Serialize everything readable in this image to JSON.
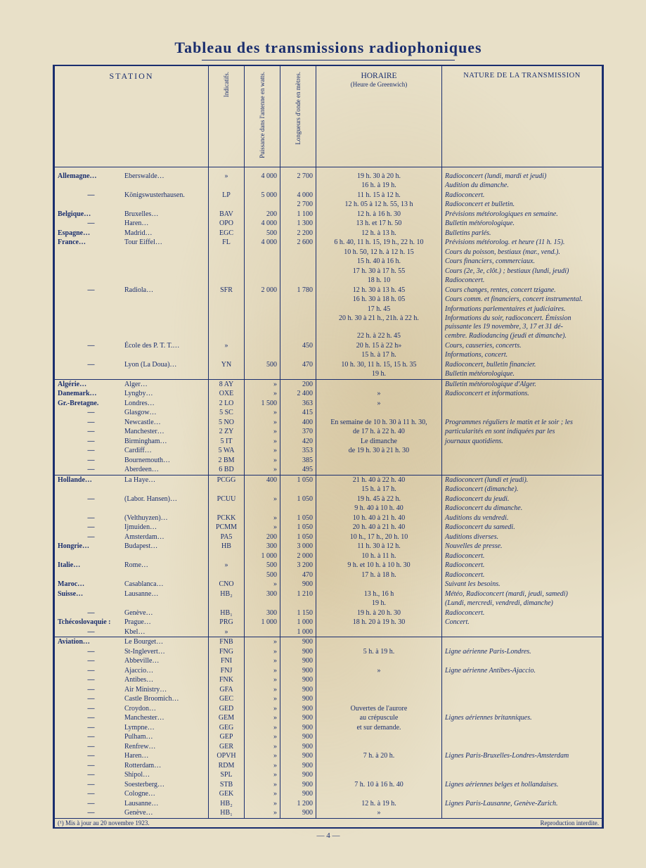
{
  "title": "Tableau des transmissions radiophoniques",
  "headers": {
    "station": "STATION",
    "indicatifs": "Indicatifs.",
    "puissance": "Puissance dans l'antenne en watts.",
    "longueurs": "Longueurs d'onde en mètres.",
    "horaire": "HORAIRE",
    "horaire_sub": "(Heure de Greenwich)",
    "nature": "NATURE DE LA TRANSMISSION"
  },
  "rows": [
    {
      "country": "Allemagne…",
      "city": "Eberswalde…",
      "ind": "»",
      "watts": "4 000",
      "len": "2 700",
      "hor": "19 h. 30 à 20 h.",
      "nat": "Radioconcert (lundi, mardi et jeudi)"
    },
    {
      "country": "",
      "city": "",
      "ind": "",
      "watts": "",
      "len": "",
      "hor": "16 h. à 19 h.",
      "nat": "Audition du dimanche."
    },
    {
      "country": "—",
      "city": "Königswusterhausen.",
      "ind": "LP",
      "watts": "5 000",
      "len": "4 000",
      "hor": "11 h. 15 à 12 h.",
      "nat": "Radioconcert."
    },
    {
      "country": "",
      "city": "",
      "ind": "",
      "watts": "",
      "len": "2 700",
      "hor": "12 h. 05 à 12 h. 55, 13 h",
      "nat": "Radioconcert et bulletin."
    },
    {
      "country": "Belgique…",
      "city": "Bruxelles…",
      "ind": "BAV",
      "watts": "200",
      "len": "1 100",
      "hor": "12 h. à 16 h. 30",
      "nat": "Prévisions météorologiques en semaine."
    },
    {
      "country": "—",
      "city": "Haren…",
      "ind": "OPO",
      "watts": "4 000",
      "len": "1 300",
      "hor": "13 h. et 17 h. 50",
      "nat": "Bulletin météorologique."
    },
    {
      "country": "Espagne…",
      "city": "Madrid…",
      "ind": "EGC",
      "watts": "500",
      "len": "2 200",
      "hor": "12 h. à 13 h.",
      "nat": "Bulletins parlés."
    },
    {
      "country": "France…",
      "city": "Tour Eiffel…",
      "ind": "FL",
      "watts": "4 000",
      "len": "2 600",
      "hor": "6 h. 40, 11 h. 15, 19 h., 22 h. 10",
      "nat": "Prévisions météorolog. et heure (11 h. 15)."
    },
    {
      "country": "",
      "city": "",
      "ind": "",
      "watts": "",
      "len": "",
      "hor": "10 h. 50, 12 h. à 12 h. 15",
      "nat": "Cours du poisson, bestiaux (mar., vend.)."
    },
    {
      "country": "",
      "city": "",
      "ind": "",
      "watts": "",
      "len": "",
      "hor": "15 h. 40 à 16 h.",
      "nat": "Cours financiers, commerciaux."
    },
    {
      "country": "",
      "city": "",
      "ind": "",
      "watts": "",
      "len": "",
      "hor": "17 h. 30 à 17 h. 55",
      "nat": "Cours (2e, 3e, clôt.) ; bestiaux (lundi, jeudi)"
    },
    {
      "country": "",
      "city": "",
      "ind": "",
      "watts": "",
      "len": "",
      "hor": "18 h. 10",
      "nat": "Radioconcert."
    },
    {
      "country": "—",
      "city": "Radiola…",
      "ind": "SFR",
      "watts": "2 000",
      "len": "1 780",
      "hor": "12 h. 30 à 13 h. 45",
      "nat": "Cours changes, rentes, concert tzigane."
    },
    {
      "country": "",
      "city": "",
      "ind": "",
      "watts": "",
      "len": "",
      "hor": "16 h. 30 à 18 h. 05",
      "nat": "Cours comm. et financiers, concert instrumental."
    },
    {
      "country": "",
      "city": "",
      "ind": "",
      "watts": "",
      "len": "",
      "hor": "17 h. 45",
      "nat": "Informations parlementaires et judiciaires."
    },
    {
      "country": "",
      "city": "",
      "ind": "",
      "watts": "",
      "len": "",
      "hor": "20 h. 30 à 21 h., 21h. à 22 h.",
      "nat": "Informations du soir, radioconcert. Émission puissante les 19 novembre, 3, 17 et 31 dé-"
    },
    {
      "country": "",
      "city": "",
      "ind": "",
      "watts": "",
      "len": "",
      "hor": "22 h. à 22 h. 45",
      "nat": "cembre. Radiodancing (jeudi et dimanche)."
    },
    {
      "country": "—",
      "city": "École des P. T. T.…",
      "ind": "»",
      "watts": "",
      "len": "450",
      "hor": "20 h. 15 à 22 h»",
      "nat": "Cours, causeries, concerts."
    },
    {
      "country": "",
      "city": "",
      "ind": "",
      "watts": "",
      "len": "",
      "hor": "15 h. à 17 h.",
      "nat": "Informations, concert."
    },
    {
      "country": "—",
      "city": "Lyon (La Doua)…",
      "ind": "YN",
      "watts": "500",
      "len": "470",
      "hor": "10 h. 30, 11 h. 15, 15 h. 35",
      "nat": "Radioconcert, bulletin financier."
    },
    {
      "country": "",
      "city": "",
      "ind": "",
      "watts": "",
      "len": "",
      "hor": "19 h.",
      "nat": "Bulletin météorologique."
    },
    {
      "country": "Algérie…",
      "city": "Alger…",
      "ind": "8 AY",
      "watts": "»",
      "len": "200",
      "hor": "",
      "nat": "Bulletin météorologique d'Alger.",
      "sep": true
    },
    {
      "country": "Danemark…",
      "city": "Lyngby…",
      "ind": "OXE",
      "watts": "»",
      "len": "2 400",
      "hor": "»",
      "nat": "Radioconcert et informations."
    },
    {
      "country": "Gr.-Bretagne.",
      "city": "Londres…",
      "ind": "2 LO",
      "watts": "1 500",
      "len": "363",
      "hor": "»",
      "nat": ""
    },
    {
      "country": "—",
      "city": "Glasgow…",
      "ind": "5 SC",
      "watts": "»",
      "len": "415",
      "hor": "",
      "nat": ""
    },
    {
      "country": "—",
      "city": "Newcastle…",
      "ind": "5 NO",
      "watts": "»",
      "len": "400",
      "hor": "En semaine de 10 h. 30 à 11 h. 30,",
      "nat": "Programmes réguliers le matin et le soir ; les"
    },
    {
      "country": "—",
      "city": "Manchester…",
      "ind": "2 ZY",
      "watts": "»",
      "len": "370",
      "hor": "de 17 h. à 22 h. 40",
      "nat": "particularités en sont indiquées par les"
    },
    {
      "country": "—",
      "city": "Birmingham…",
      "ind": "5 IT",
      "watts": "»",
      "len": "420",
      "hor": "Le dimanche",
      "nat": "journaux quotidiens."
    },
    {
      "country": "—",
      "city": "Cardiff…",
      "ind": "5 WA",
      "watts": "»",
      "len": "353",
      "hor": "de 19 h. 30 à 21 h. 30",
      "nat": ""
    },
    {
      "country": "—",
      "city": "Bournemouth…",
      "ind": "2 BM",
      "watts": "»",
      "len": "385",
      "hor": "",
      "nat": ""
    },
    {
      "country": "—",
      "city": "Aberdeen…",
      "ind": "6 BD",
      "watts": "»",
      "len": "495",
      "hor": "",
      "nat": ""
    },
    {
      "country": "Hollande…",
      "city": "La Haye…",
      "ind": "PCGG",
      "watts": "400",
      "len": "1 050",
      "hor": "21 h. 40 à 22 h. 40",
      "nat": "Radioconcert (lundi et jeudi).",
      "sep": true
    },
    {
      "country": "",
      "city": "",
      "ind": "",
      "watts": "",
      "len": "",
      "hor": "15 h. à 17 h.",
      "nat": "Radioconcert (dimanche)."
    },
    {
      "country": "—",
      "city": "(Labor. Hansen)…",
      "ind": "PCUU",
      "watts": "»",
      "len": "1 050",
      "hor": "19 h. 45 à 22 h.",
      "nat": "Radioconcert du jeudi."
    },
    {
      "country": "",
      "city": "",
      "ind": "",
      "watts": "",
      "len": "",
      "hor": "9 h. 40 à 10 h. 40",
      "nat": "Radioconcert du dimanche."
    },
    {
      "country": "—",
      "city": "(Velthuyzen)…",
      "ind": "PCKK",
      "watts": "»",
      "len": "1 050",
      "hor": "10 h. 40 à 21 h. 40",
      "nat": "Auditions du vendredi."
    },
    {
      "country": "—",
      "city": "Ijmuiden…",
      "ind": "PCMM",
      "watts": "»",
      "len": "1 050",
      "hor": "20 h. 40 à 21 h. 40",
      "nat": "Radioconcert du samedi."
    },
    {
      "country": "—",
      "city": "Amsterdam…",
      "ind": "PA5",
      "watts": "200",
      "len": "1 050",
      "hor": "10 h., 17 h., 20 h. 10",
      "nat": "Auditions diverses."
    },
    {
      "country": "Hongrie…",
      "city": "Budapest…",
      "ind": "HB",
      "watts": "300",
      "len": "3 000",
      "hor": "11 h. 30 à 12 h.",
      "nat": "Nouvelles de presse."
    },
    {
      "country": "",
      "city": "",
      "ind": "",
      "watts": "1 000",
      "len": "2 000",
      "hor": "10 h. à 11 h.",
      "nat": "Radioconcert."
    },
    {
      "country": "Italie…",
      "city": "Rome…",
      "ind": "»",
      "watts": "500",
      "len": "3 200",
      "hor": "9 h. et 10 h. à 10 h. 30",
      "nat": "Radioconcert."
    },
    {
      "country": "",
      "city": "",
      "ind": "",
      "watts": "500",
      "len": "470",
      "hor": "17 h. à 18 h.",
      "nat": "Radioconcert."
    },
    {
      "country": "Maroc…",
      "city": "Casablanca…",
      "ind": "CNO",
      "watts": "»",
      "len": "900",
      "hor": "",
      "nat": "Suivant les besoins."
    },
    {
      "country": "Suisse…",
      "city": "Lausanne…",
      "ind": "HB₂",
      "watts": "300",
      "len": "1 210",
      "hor": "13 h., 16 h",
      "nat": "Météo, Radioconcert (mardi, jeudi, samedi)"
    },
    {
      "country": "",
      "city": "",
      "ind": "",
      "watts": "",
      "len": "",
      "hor": "19 h.",
      "nat": "(Lundi, mercredi, vendredi, dimanche)"
    },
    {
      "country": "—",
      "city": "Genève…",
      "ind": "HB₁",
      "watts": "300",
      "len": "1 150",
      "hor": "19 h. à 20 h. 30",
      "nat": "Radioconcert."
    },
    {
      "country": "Tchécoslovaquie :",
      "city": "Prague…",
      "ind": "PRG",
      "watts": "1 000",
      "len": "1 000",
      "hor": "18 h. 20 à 19 h. 30",
      "nat": "Concert."
    },
    {
      "country": "—",
      "city": "Kbel…",
      "ind": "»",
      "watts": "",
      "len": "1 000",
      "hor": "",
      "nat": ""
    },
    {
      "country": "Aviation…",
      "city": "Le Bourget…",
      "ind": "FNB",
      "watts": "»",
      "len": "900",
      "hor": "",
      "nat": "",
      "sep": true
    },
    {
      "country": "—",
      "city": "St-Inglevert…",
      "ind": "FNG",
      "watts": "»",
      "len": "900",
      "hor": "5 h. à 19 h.",
      "nat": "Ligne aérienne Paris-Londres."
    },
    {
      "country": "—",
      "city": "Abbeville…",
      "ind": "FNI",
      "watts": "»",
      "len": "900",
      "hor": "",
      "nat": ""
    },
    {
      "country": "—",
      "city": "Ajaccio…",
      "ind": "FNJ",
      "watts": "»",
      "len": "900",
      "hor": "»",
      "nat": "Ligne aérienne Antibes-Ajaccio."
    },
    {
      "country": "—",
      "city": "Antibes…",
      "ind": "FNK",
      "watts": "»",
      "len": "900",
      "hor": "",
      "nat": ""
    },
    {
      "country": "—",
      "city": "Air Ministry…",
      "ind": "GFA",
      "watts": "»",
      "len": "900",
      "hor": "",
      "nat": ""
    },
    {
      "country": "—",
      "city": "Castle Broomich…",
      "ind": "GEC",
      "watts": "»",
      "len": "900",
      "hor": "",
      "nat": ""
    },
    {
      "country": "—",
      "city": "Croydon…",
      "ind": "GED",
      "watts": "»",
      "len": "900",
      "hor": "Ouvertes de l'aurore",
      "nat": ""
    },
    {
      "country": "—",
      "city": "Manchester…",
      "ind": "GEM",
      "watts": "»",
      "len": "900",
      "hor": "au crépuscule",
      "nat": "Lignes aériennes britanniques."
    },
    {
      "country": "—",
      "city": "Lympne…",
      "ind": "GEG",
      "watts": "»",
      "len": "900",
      "hor": "et sur demande.",
      "nat": ""
    },
    {
      "country": "—",
      "city": "Pulham…",
      "ind": "GEP",
      "watts": "»",
      "len": "900",
      "hor": "",
      "nat": ""
    },
    {
      "country": "—",
      "city": "Renfrew…",
      "ind": "GER",
      "watts": "»",
      "len": "900",
      "hor": "",
      "nat": ""
    },
    {
      "country": "—",
      "city": "Haren…",
      "ind": "OPVH",
      "watts": "»",
      "len": "900",
      "hor": "7 h. à 20 h.",
      "nat": "Lignes Paris-Bruxelles-Londres-Amsterdam"
    },
    {
      "country": "—",
      "city": "Rotterdam…",
      "ind": "RDM",
      "watts": "»",
      "len": "900",
      "hor": "",
      "nat": ""
    },
    {
      "country": "—",
      "city": "Shipol…",
      "ind": "SPL",
      "watts": "»",
      "len": "900",
      "hor": "",
      "nat": ""
    },
    {
      "country": "—",
      "city": "Soesterberg…",
      "ind": "STB",
      "watts": "»",
      "len": "900",
      "hor": "7 h. 10 à 16 h. 40",
      "nat": "Lignes aériennes belges et hollandaises."
    },
    {
      "country": "—",
      "city": "Cologne…",
      "ind": "GEK",
      "watts": "»",
      "len": "900",
      "hor": "",
      "nat": ""
    },
    {
      "country": "—",
      "city": "Lausanne…",
      "ind": "HB₂",
      "watts": "»",
      "len": "1 200",
      "hor": "12 h. à 19 h.",
      "nat": "Lignes Paris-Lausanne, Genève-Zurich."
    },
    {
      "country": "—",
      "city": "Genève…",
      "ind": "HB₁",
      "watts": "»",
      "len": "900",
      "hor": "»",
      "nat": ""
    }
  ],
  "footnote_left": "(¹) Mis à jour au 20 novembre 1923.",
  "footnote_right": "Reproduction interdite.",
  "page_number": "— 4 —",
  "colors": {
    "ink": "#1a2e6e",
    "paper": "#e8e0c8",
    "bg": "#4a4a4a"
  }
}
